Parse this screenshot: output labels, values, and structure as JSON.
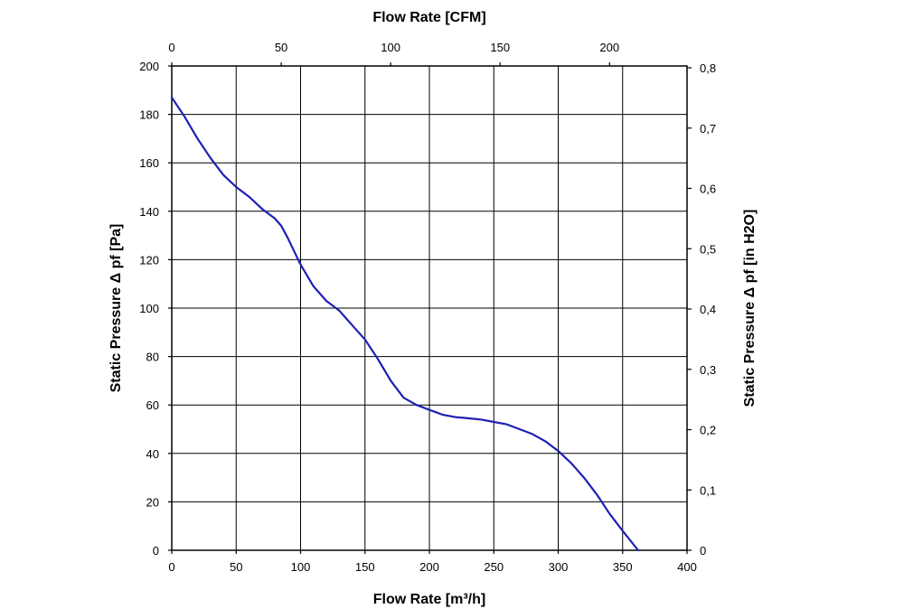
{
  "chart_data": {
    "type": "line",
    "title": "",
    "xlabel": "Flow Rate [m³/h]",
    "x2label": "Flow Rate [CFM]",
    "ylabel": "Static Pressure Δ pf [Pa]",
    "y2label": "Static Pressure Δ pf [in H2O]",
    "xlim": [
      0,
      400
    ],
    "ylim": [
      0,
      200
    ],
    "x2lim": [
      0,
      235.4
    ],
    "y2lim": [
      0,
      0.803
    ],
    "x_ticks": [
      "0",
      "50",
      "100",
      "150",
      "200",
      "250",
      "300",
      "350",
      "400"
    ],
    "y_ticks": [
      "0",
      "20",
      "40",
      "60",
      "80",
      "100",
      "120",
      "140",
      "160",
      "180",
      "200"
    ],
    "x2_ticks": [
      {
        "value": 0,
        "label": "0"
      },
      {
        "value": 50,
        "label": "50"
      },
      {
        "value": 100,
        "label": "100"
      },
      {
        "value": 150,
        "label": "150"
      },
      {
        "value": 200,
        "label": "200"
      }
    ],
    "y2_ticks": [
      {
        "value": 0,
        "label": "0"
      },
      {
        "value": 0.1,
        "label": "0,1"
      },
      {
        "value": 0.2,
        "label": "0,2"
      },
      {
        "value": 0.3,
        "label": "0,3"
      },
      {
        "value": 0.4,
        "label": "0,4"
      },
      {
        "value": 0.5,
        "label": "0,5"
      },
      {
        "value": 0.6,
        "label": "0,6"
      },
      {
        "value": 0.7,
        "label": "0,7"
      },
      {
        "value": 0.8,
        "label": "0,8"
      }
    ],
    "grid": true,
    "legend": "none",
    "series": [
      {
        "color": "#1f1fb4",
        "x": [
          0,
          10,
          20,
          30,
          40,
          50,
          60,
          70,
          80,
          85,
          90,
          100,
          110,
          120,
          130,
          140,
          150,
          160,
          170,
          180,
          190,
          200,
          205,
          210,
          220,
          230,
          240,
          250,
          260,
          270,
          280,
          290,
          300,
          310,
          320,
          330,
          340,
          350,
          362
        ],
        "y": [
          187,
          179,
          170,
          162,
          155,
          150,
          146,
          141,
          137,
          134,
          129,
          118,
          109,
          103,
          99,
          93,
          87,
          79,
          70,
          63,
          60,
          58,
          57,
          56,
          55,
          54.5,
          54,
          53,
          52,
          50,
          48,
          45,
          41,
          36,
          30,
          23,
          15,
          8,
          0
        ]
      }
    ]
  }
}
